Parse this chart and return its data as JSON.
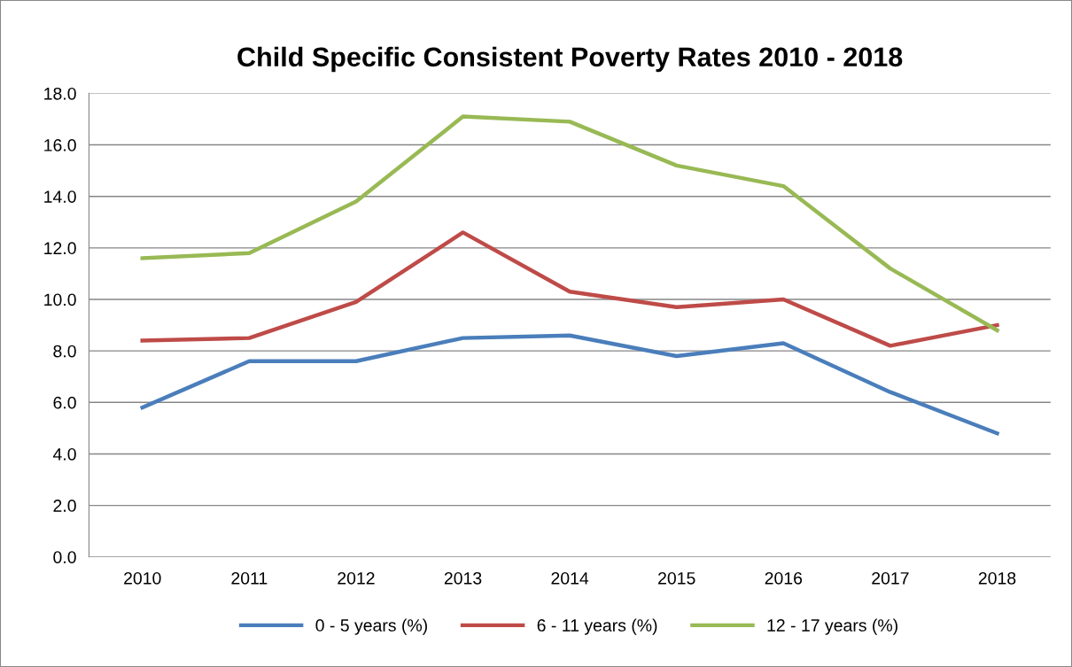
{
  "chart_data": {
    "type": "line",
    "title": "Child Specific Consistent Poverty Rates 2010 - 2018",
    "categories": [
      "2010",
      "2011",
      "2012",
      "2013",
      "2014",
      "2015",
      "2016",
      "2017",
      "2018"
    ],
    "series": [
      {
        "name": "0 - 5 years (%)",
        "color": "#4a7ebb",
        "values": [
          5.8,
          7.6,
          7.6,
          8.5,
          8.6,
          7.8,
          8.3,
          6.4,
          4.8
        ]
      },
      {
        "name": "6 - 11 years (%)",
        "color": "#be4b48",
        "values": [
          8.4,
          8.5,
          9.9,
          12.6,
          10.3,
          9.7,
          10.0,
          8.2,
          9.0
        ]
      },
      {
        "name": "12 - 17 years (%)",
        "color": "#98b954",
        "values": [
          11.6,
          11.8,
          13.8,
          17.1,
          16.9,
          15.2,
          14.4,
          11.2,
          8.8
        ]
      }
    ],
    "ylim": [
      0,
      18
    ],
    "yticks": [
      {
        "value": 0,
        "label": "0.0"
      },
      {
        "value": 2,
        "label": "2.0"
      },
      {
        "value": 4,
        "label": "4.0"
      },
      {
        "value": 6,
        "label": "6.0"
      },
      {
        "value": 8,
        "label": "8.0"
      },
      {
        "value": 10,
        "label": "10.0"
      },
      {
        "value": 12,
        "label": "12.0"
      },
      {
        "value": 14,
        "label": "14.0"
      },
      {
        "value": 16,
        "label": "16.0"
      },
      {
        "value": 18,
        "label": "18.0"
      }
    ],
    "grid": "y",
    "legend": "bottom",
    "marker": "none",
    "line_style": "solid"
  }
}
